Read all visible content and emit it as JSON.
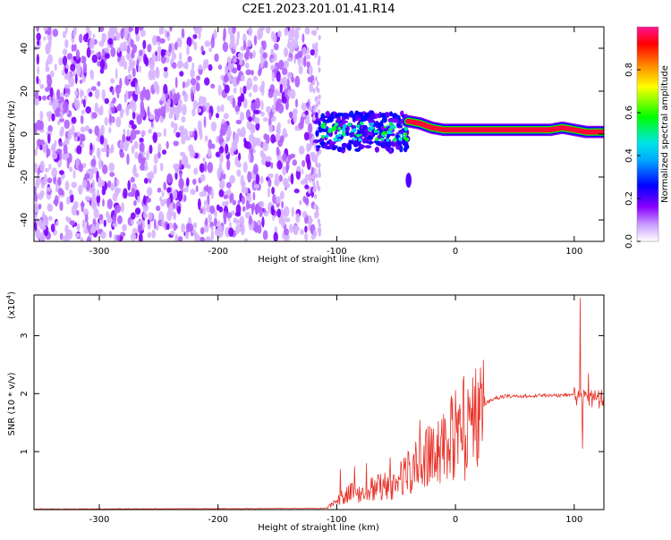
{
  "title": "C2E1.2023.201.01.41.R14",
  "chart_data": [
    {
      "type": "heatmap",
      "xlabel": "Height of straight line (km)",
      "ylabel": "Frequency (Hz)",
      "xlim": [
        -355,
        125
      ],
      "ylim": [
        -50,
        50
      ],
      "x_ticks": [
        -300,
        -200,
        -100,
        0,
        100
      ],
      "y_ticks": [
        -40,
        -20,
        0,
        20,
        40
      ],
      "colorbar": {
        "label": "Normalized spectral amplitude",
        "range": [
          0,
          1
        ],
        "ticks": [
          0.0,
          0.2,
          0.4,
          0.6,
          0.8
        ],
        "colors": [
          "#ffffff",
          "#8a00ff",
          "#0000ff",
          "#00e5ff",
          "#00ff00",
          "#ffff00",
          "#ff0000",
          "#ff1493"
        ]
      },
      "regions": [
        {
          "feature": "noise",
          "x": [
            -355,
            -118
          ],
          "y": [
            -50,
            50
          ],
          "level": 0.3
        },
        {
          "feature": "signal-band",
          "x": [
            -118,
            -40
          ],
          "y": [
            -8,
            10
          ],
          "level": 0.5
        },
        {
          "feature": "signal-line",
          "x": [
            0,
            125
          ],
          "y": [
            1,
            3
          ],
          "level": 0.95
        },
        {
          "feature": "blob",
          "x": [
            -42,
            -37
          ],
          "y": [
            -25,
            -18
          ],
          "level": 0.2
        }
      ],
      "signal_frequency_trace": [
        {
          "x": -40,
          "y": 6
        },
        {
          "x": -30,
          "y": 5
        },
        {
          "x": -20,
          "y": 3
        },
        {
          "x": -10,
          "y": 2
        },
        {
          "x": 0,
          "y": 2
        },
        {
          "x": 80,
          "y": 2
        },
        {
          "x": 90,
          "y": 3
        },
        {
          "x": 110,
          "y": 1
        },
        {
          "x": 125,
          "y": 1
        }
      ]
    },
    {
      "type": "line",
      "xlabel": "Height of straight line (km)",
      "ylabel": "SNR (10 * v/v)",
      "y_scale_label": "(x10",
      "y_scale_exp": "4",
      "y_scale_close": ")",
      "xlim": [
        -355,
        125
      ],
      "ylim": [
        0,
        3.7
      ],
      "x_ticks": [
        -300,
        -200,
        -100,
        0,
        100
      ],
      "y_ticks": [
        1,
        2,
        3
      ],
      "line_color": "#e8332a",
      "series_envelope": [
        {
          "x": -355,
          "y": 0.01
        },
        {
          "x": -110,
          "y": 0.02
        },
        {
          "x": -100,
          "y": 0.15
        },
        {
          "x": -90,
          "y": 0.35
        },
        {
          "x": -80,
          "y": 0.3
        },
        {
          "x": -70,
          "y": 0.4
        },
        {
          "x": -60,
          "y": 0.45
        },
        {
          "x": -50,
          "y": 0.5
        },
        {
          "x": -40,
          "y": 0.7
        },
        {
          "x": -30,
          "y": 0.9
        },
        {
          "x": -20,
          "y": 1.05
        },
        {
          "x": -10,
          "y": 1.2
        },
        {
          "x": 0,
          "y": 1.45
        },
        {
          "x": 10,
          "y": 1.6
        },
        {
          "x": 20,
          "y": 1.75
        },
        {
          "x": 30,
          "y": 1.9
        },
        {
          "x": 40,
          "y": 1.95
        },
        {
          "x": 80,
          "y": 1.97
        },
        {
          "x": 100,
          "y": 1.98
        },
        {
          "x": 110,
          "y": 1.9
        },
        {
          "x": 125,
          "y": 1.9
        }
      ],
      "spikes": [
        {
          "x": -97,
          "y": 0.7
        },
        {
          "x": -85,
          "y": 0.75
        },
        {
          "x": -75,
          "y": 0.8
        },
        {
          "x": -55,
          "y": 0.9
        },
        {
          "x": -40,
          "y": 1.0
        },
        {
          "x": -30,
          "y": 1.55
        },
        {
          "x": -20,
          "y": 1.4
        },
        {
          "x": 7,
          "y": 2.3
        },
        {
          "x": 8,
          "y": 0.5
        },
        {
          "x": 100,
          "y": 2.1
        },
        {
          "x": 105,
          "y": 3.65
        },
        {
          "x": 107,
          "y": 1.05
        },
        {
          "x": 112,
          "y": 2.35
        }
      ]
    }
  ]
}
